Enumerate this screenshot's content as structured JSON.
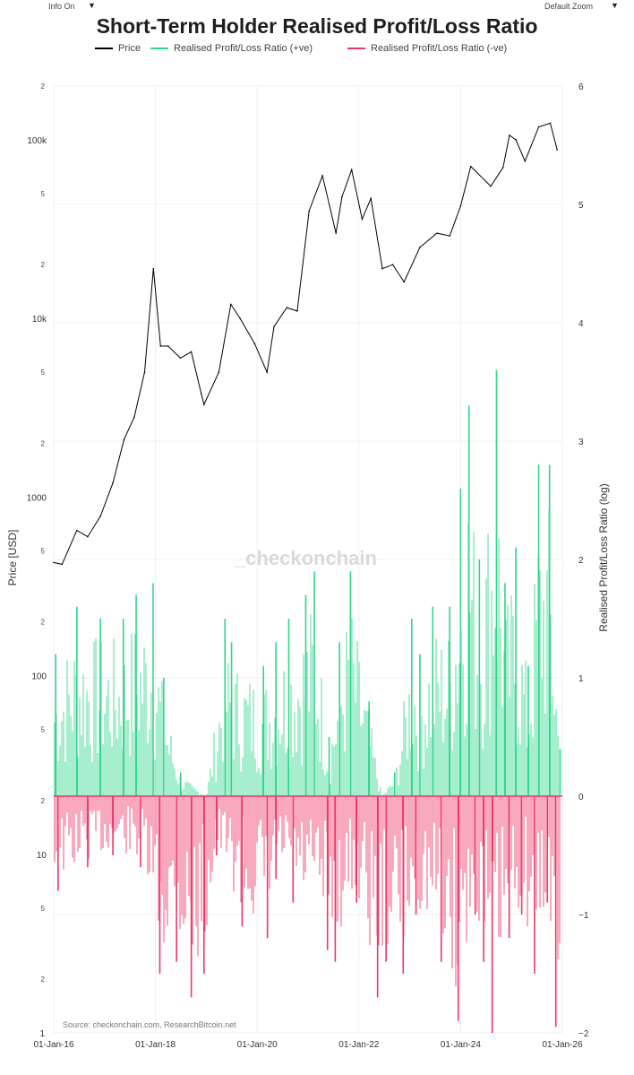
{
  "controls": {
    "info_label": "Info On",
    "zoom_label": "Default Zoom",
    "caret": "▼"
  },
  "chart_data": {
    "type": "line",
    "title": "Short-Term Holder Realised Profit/Loss Ratio",
    "legend": [
      {
        "name": "Price",
        "color": "#000000"
      },
      {
        "name": "Realised Profit/Loss Ratio (+ve)",
        "color": "#2fd68a"
      },
      {
        "name": "Realised Profit/Loss Ratio (-ve)",
        "color": "#ee3565"
      }
    ],
    "x_ticks": [
      "01-Jan-16",
      "01-Jan-18",
      "01-Jan-20",
      "01-Jan-22",
      "01-Jan-24",
      "01-Jan-26"
    ],
    "xlim": [
      "2016-01-01",
      "2026-01-01"
    ],
    "y_left": {
      "label": "Price [USD]",
      "scale": "log",
      "ylim": [
        1,
        200000
      ],
      "major_ticks": [
        {
          "v": 10,
          "t": "10"
        },
        {
          "v": 100,
          "t": "100"
        },
        {
          "v": 1000,
          "t": "1000"
        },
        {
          "v": 10000,
          "t": "10k"
        },
        {
          "v": 100000,
          "t": "100k"
        }
      ],
      "minor_ticks": [
        {
          "v": 2,
          "t": "2"
        },
        {
          "v": 5,
          "t": "5"
        },
        {
          "v": 20,
          "t": "2"
        },
        {
          "v": 50,
          "t": "5"
        },
        {
          "v": 200,
          "t": "2"
        },
        {
          "v": 500,
          "t": "5"
        },
        {
          "v": 2000,
          "t": "2"
        },
        {
          "v": 5000,
          "t": "5"
        },
        {
          "v": 20000,
          "t": "2"
        },
        {
          "v": 50000,
          "t": "5"
        },
        {
          "v": 200000,
          "t": "2"
        }
      ],
      "bottom_tick": "1"
    },
    "y_right": {
      "label": "Realised Profit/Loss Ratio (log)",
      "ylim": [
        -2,
        6
      ],
      "ticks": [
        {
          "v": 6,
          "t": "6"
        },
        {
          "v": 5,
          "t": "5"
        },
        {
          "v": 4,
          "t": "4"
        },
        {
          "v": 3,
          "t": "3"
        },
        {
          "v": 2,
          "t": "2"
        },
        {
          "v": 1,
          "t": "1"
        },
        {
          "v": 0,
          "t": "0"
        },
        {
          "v": -1,
          "t": "−1"
        },
        {
          "v": -2,
          "t": "−2"
        }
      ]
    },
    "series": [
      {
        "name": "Price",
        "color": "#000000",
        "x": [
          "2016-01-01",
          "2016-03-01",
          "2016-06-15",
          "2016-09-01",
          "2016-12-01",
          "2017-03-01",
          "2017-05-20",
          "2017-08-01",
          "2017-10-15",
          "2017-12-17",
          "2018-02-06",
          "2018-04-01",
          "2018-06-29",
          "2018-09-15",
          "2018-11-25",
          "2018-12-15",
          "2019-04-01",
          "2019-06-26",
          "2019-09-01",
          "2019-12-15",
          "2020-03-12",
          "2020-05-01",
          "2020-08-01",
          "2020-10-15",
          "2021-01-08",
          "2021-04-14",
          "2021-07-20",
          "2021-09-01",
          "2021-11-10",
          "2022-01-24",
          "2022-03-28",
          "2022-06-18",
          "2022-09-01",
          "2022-11-21",
          "2023-03-15",
          "2023-07-15",
          "2023-10-15",
          "2024-01-01",
          "2024-03-14",
          "2024-08-05",
          "2024-11-01",
          "2024-12-17",
          "2025-02-01",
          "2025-04-08",
          "2025-07-15",
          "2025-10-06",
          "2025-11-25"
        ],
        "y": [
          430,
          420,
          650,
          600,
          780,
          1200,
          2100,
          2800,
          5000,
          19000,
          7000,
          7000,
          6000,
          6500,
          3800,
          3300,
          5000,
          12000,
          10000,
          7200,
          5000,
          9000,
          11500,
          11000,
          40000,
          63000,
          30000,
          48000,
          68000,
          36000,
          47000,
          19000,
          20000,
          16000,
          25000,
          30000,
          29000,
          42500,
          71000,
          55000,
          70000,
          106000,
          100000,
          76000,
          118000,
          124000,
          88000
        ]
      },
      {
        "name": "Realised Profit/Loss Ratio (+ve)",
        "color": "#2fd68a",
        "x": [
          "2016-01-15",
          "2016-06-15",
          "2016-12-01",
          "2017-05-15",
          "2017-08-15",
          "2017-12-15",
          "2018-03-01",
          "2018-07-01",
          "2019-01-01",
          "2019-05-15",
          "2019-07-01",
          "2020-02-15",
          "2020-05-15",
          "2020-08-15",
          "2020-12-15",
          "2021-02-15",
          "2021-06-01",
          "2021-08-15",
          "2021-11-01",
          "2022-03-15",
          "2022-06-15",
          "2022-09-15",
          "2023-01-15",
          "2023-03-15",
          "2023-06-15",
          "2023-10-15",
          "2024-01-01",
          "2024-03-01",
          "2024-05-15",
          "2024-09-15",
          "2024-11-15",
          "2025-02-01",
          "2025-05-01",
          "2025-07-15",
          "2025-10-01",
          "2025-12-15"
        ],
        "y": [
          1.2,
          1.6,
          1.5,
          1.5,
          1.7,
          1.8,
          1.0,
          0.2,
          0.0,
          1.5,
          1.3,
          1.1,
          1.3,
          1.5,
          1.7,
          1.9,
          0.5,
          1.3,
          1.9,
          0.8,
          0.0,
          0.2,
          1.5,
          1.2,
          1.6,
          1.6,
          2.6,
          3.3,
          2.0,
          3.6,
          1.8,
          2.1,
          1.1,
          2.8,
          2.8,
          0.4
        ]
      },
      {
        "name": "Realised Profit/Loss Ratio (-ve)",
        "color": "#ee3565",
        "x": [
          "2016-02-01",
          "2016-09-01",
          "2017-03-01",
          "2017-09-15",
          "2018-02-01",
          "2018-06-01",
          "2018-09-15",
          "2018-12-15",
          "2019-03-15",
          "2019-09-15",
          "2020-03-15",
          "2020-05-15",
          "2020-09-15",
          "2021-05-20",
          "2021-07-15",
          "2021-12-15",
          "2022-05-15",
          "2022-07-15",
          "2022-11-15",
          "2023-02-15",
          "2023-08-15",
          "2023-12-15",
          "2024-04-15",
          "2024-06-15",
          "2024-08-15",
          "2024-12-15",
          "2025-03-15",
          "2025-06-15",
          "2025-09-15",
          "2025-11-15"
        ],
        "y": [
          -0.8,
          -0.6,
          -0.5,
          -0.6,
          -1.5,
          -1.4,
          -1.7,
          -1.5,
          -0.5,
          -1.1,
          -1.2,
          -0.7,
          -0.9,
          -1.3,
          -1.4,
          -0.9,
          -1.7,
          -1.4,
          -1.5,
          -1.0,
          -1.4,
          -1.9,
          -1.0,
          -1.4,
          -2.0,
          -1.2,
          -1.0,
          -1.5,
          -0.9,
          -1.95
        ]
      }
    ],
    "watermark": "_checkonchain",
    "source": "Source: checkonchain.com, ResearchBitcoin.net"
  }
}
